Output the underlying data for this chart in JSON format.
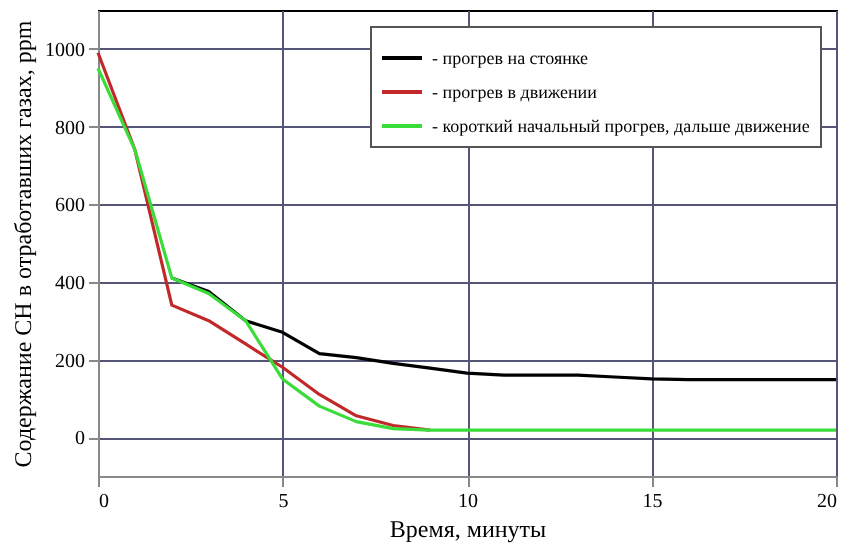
{
  "chart_data": {
    "type": "line",
    "xlabel": "Время, минуты",
    "ylabel": "Содержание СН в отработавших газах, ppm",
    "x": [
      0,
      1,
      2,
      3,
      4,
      5,
      6,
      7,
      8,
      9,
      10,
      11,
      12,
      13,
      14,
      15,
      16,
      17,
      18,
      19,
      20
    ],
    "xlim": [
      0,
      20
    ],
    "xticks": [
      0,
      5,
      10,
      15,
      20
    ],
    "ylim": [
      -100,
      1100
    ],
    "yticks": [
      0,
      200,
      400,
      600,
      800,
      1000
    ],
    "grid": true,
    "legend": "top right",
    "marker": "none",
    "line_style": "solid",
    "series": [
      {
        "name": "- прогрев на стоянке",
        "color": "#000000",
        "values": [
          null,
          null,
          410,
          375,
          300,
          270,
          215,
          205,
          190,
          178,
          165,
          160,
          160,
          160,
          155,
          150,
          148,
          148,
          148,
          148,
          148
        ]
      },
      {
        "name": "- прогрев в движении",
        "color": "#c0282a",
        "values": [
          990,
          740,
          340,
          300,
          240,
          180,
          110,
          55,
          30,
          18,
          null,
          null,
          null,
          null,
          null,
          null,
          null,
          null,
          null,
          null,
          null
        ]
      },
      {
        "name": "- короткий начальный прогрев, дальше движение",
        "color": "#3adc3a",
        "values": [
          950,
          740,
          410,
          370,
          300,
          150,
          80,
          40,
          22,
          18,
          18,
          18,
          18,
          18,
          18,
          18,
          18,
          18,
          18,
          18,
          18
        ]
      }
    ]
  }
}
